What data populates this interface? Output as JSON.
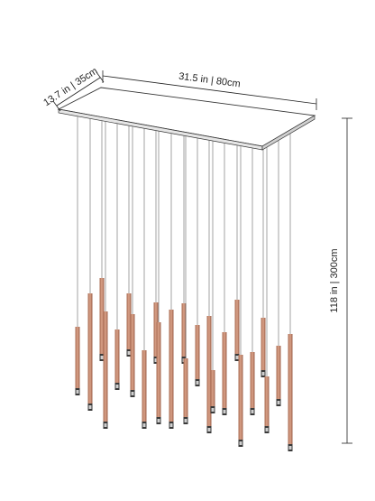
{
  "dimensions": {
    "width": "31.5 in | 80cm",
    "depth": "13.7 in | 35cm",
    "height": "118 in | 300cm"
  }
}
